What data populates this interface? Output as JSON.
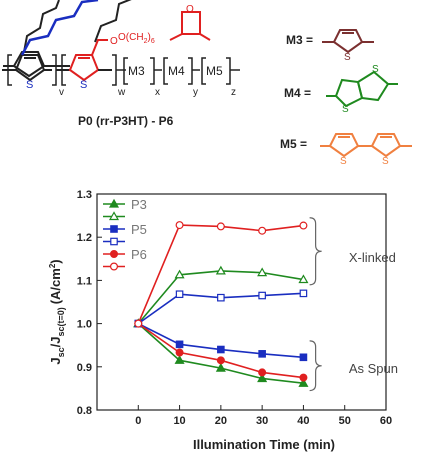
{
  "scheme": {
    "subscripts": [
      "v",
      "w",
      "x",
      "y",
      "z"
    ],
    "blocks": [
      "M3",
      "M4",
      "M5"
    ],
    "side_chain_label": "O(CH",
    "side_chain_sub": "2",
    "side_chain_paren": ")",
    "side_chain_sub2": "6",
    "caption": "P0 (rr-P3HT) - P6",
    "atom_s": "S",
    "atom_o": "O",
    "defs": [
      {
        "label": "M3 =",
        "color": "#7b3030"
      },
      {
        "label": "M4 =",
        "color": "#1f8a1f"
      },
      {
        "label": "M5 =",
        "color": "#f08040"
      }
    ],
    "colors": {
      "black": "#222222",
      "red": "#e02020",
      "brown": "#7b3030",
      "green": "#1f8a1f",
      "orange": "#f08040"
    }
  },
  "chart_data": {
    "type": "line",
    "xlabel": "Illumination Time (min)",
    "ylabel_main": "J",
    "ylabel_sub1": "sc",
    "ylabel_mid": "/J",
    "ylabel_sub2": "sc(t=0)",
    "ylabel_unit": "(A/cm",
    "ylabel_unit_sup": "2",
    "ylabel_unit_close": ")",
    "xlim": [
      -10,
      60
    ],
    "ylim": [
      0.8,
      1.3
    ],
    "xticks": [
      "0",
      "10",
      "20",
      "30",
      "40",
      "50",
      "60"
    ],
    "xtick_values": [
      0,
      10,
      20,
      30,
      40,
      50,
      60
    ],
    "yticks": [
      "0.8",
      "0.9",
      "1.0",
      "1.1",
      "1.2",
      "1.3"
    ],
    "ytick_values": [
      0.8,
      0.9,
      1.0,
      1.1,
      1.2,
      1.3
    ],
    "x": [
      0,
      10,
      20,
      30,
      40
    ],
    "series": [
      {
        "name": "P3",
        "color": "#1f8a1f",
        "marker": "triangle",
        "filled": true,
        "values": [
          1.0,
          0.915,
          0.897,
          0.873,
          0.862
        ]
      },
      {
        "name": "",
        "color": "#1f8a1f",
        "marker": "triangle",
        "filled": false,
        "values": [
          1.0,
          1.113,
          1.122,
          1.118,
          1.102
        ]
      },
      {
        "name": "P5",
        "color": "#1a2ec0",
        "marker": "square",
        "filled": true,
        "values": [
          1.0,
          0.952,
          0.94,
          0.93,
          0.922
        ]
      },
      {
        "name": "",
        "color": "#1a2ec0",
        "marker": "square",
        "filled": false,
        "values": [
          1.0,
          1.068,
          1.06,
          1.065,
          1.07
        ]
      },
      {
        "name": "P6",
        "color": "#e02020",
        "marker": "circle",
        "filled": true,
        "values": [
          1.0,
          0.933,
          0.915,
          0.887,
          0.875
        ]
      },
      {
        "name": "",
        "color": "#e02020",
        "marker": "circle",
        "filled": false,
        "values": [
          1.0,
          1.228,
          1.225,
          1.215,
          1.227
        ]
      }
    ],
    "annotations": [
      {
        "text": "X-linked",
        "x": 51,
        "y": 1.152
      },
      {
        "text": "As Spun",
        "x": 51,
        "y": 0.895
      }
    ]
  }
}
